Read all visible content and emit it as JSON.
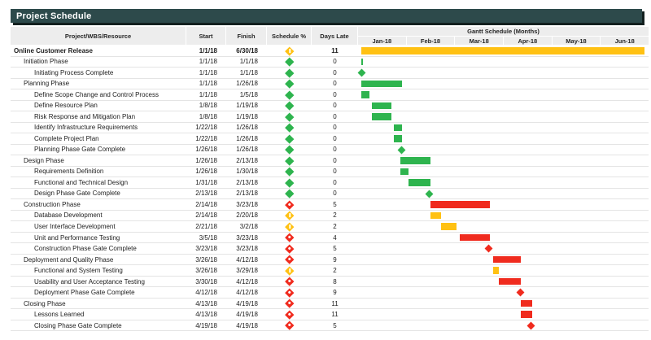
{
  "title": "Project Schedule",
  "chart_data": {
    "type": "table",
    "subtype": "gantt",
    "title": "Project Schedule",
    "columns": [
      "Project/WBS/Resource",
      "Start",
      "Finish",
      "Schedule %",
      "Days Late"
    ],
    "gantt_header": "Gantt Schedule (Months)",
    "months": [
      "Jan-18",
      "Feb-18",
      "Mar-18",
      "Apr-18",
      "May-18",
      "Jun-18"
    ],
    "timeline": {
      "start": "1/1/18",
      "end": "6/30/18"
    },
    "colors": {
      "green": "#2EB44E",
      "yellow": "#FFC113",
      "red": "#F02B1E",
      "title_bg": "#2D4A4B",
      "header_bg": "#EDEDED"
    },
    "rows": [
      {
        "name": "Online Customer Release",
        "level": 0,
        "bold": true,
        "start": "1/1/18",
        "finish": "6/30/18",
        "status": "yellow",
        "days_late": "11",
        "marker": "bar"
      },
      {
        "name": "Initiation Phase",
        "level": 1,
        "bold": false,
        "start": "1/1/18",
        "finish": "1/1/18",
        "status": "green",
        "days_late": "0",
        "marker": "bar"
      },
      {
        "name": "Initiating Process Complete",
        "level": 2,
        "bold": false,
        "start": "1/1/18",
        "finish": "1/1/18",
        "status": "green",
        "days_late": "0",
        "marker": "diamond"
      },
      {
        "name": "Planning Phase",
        "level": 1,
        "bold": false,
        "start": "1/1/18",
        "finish": "1/26/18",
        "status": "green",
        "days_late": "0",
        "marker": "bar"
      },
      {
        "name": "Define Scope Change and Control Process",
        "level": 2,
        "bold": false,
        "start": "1/1/18",
        "finish": "1/5/18",
        "status": "green",
        "days_late": "0",
        "marker": "bar"
      },
      {
        "name": "Define Resource Plan",
        "level": 2,
        "bold": false,
        "start": "1/8/18",
        "finish": "1/19/18",
        "status": "green",
        "days_late": "0",
        "marker": "bar"
      },
      {
        "name": "Risk Response and Mitigation Plan",
        "level": 2,
        "bold": false,
        "start": "1/8/18",
        "finish": "1/19/18",
        "status": "green",
        "days_late": "0",
        "marker": "bar"
      },
      {
        "name": "Identify Infrastructure Requirements",
        "level": 2,
        "bold": false,
        "start": "1/22/18",
        "finish": "1/26/18",
        "status": "green",
        "days_late": "0",
        "marker": "bar"
      },
      {
        "name": "Complete Project Plan",
        "level": 2,
        "bold": false,
        "start": "1/22/18",
        "finish": "1/26/18",
        "status": "green",
        "days_late": "0",
        "marker": "bar"
      },
      {
        "name": "Planning Phase Gate Complete",
        "level": 2,
        "bold": false,
        "start": "1/26/18",
        "finish": "1/26/18",
        "status": "green",
        "days_late": "0",
        "marker": "diamond"
      },
      {
        "name": "Design Phase",
        "level": 1,
        "bold": false,
        "start": "1/26/18",
        "finish": "2/13/18",
        "status": "green",
        "days_late": "0",
        "marker": "bar"
      },
      {
        "name": "Requirements Definition",
        "level": 2,
        "bold": false,
        "start": "1/26/18",
        "finish": "1/30/18",
        "status": "green",
        "days_late": "0",
        "marker": "bar"
      },
      {
        "name": "Functional and Technical Design",
        "level": 2,
        "bold": false,
        "start": "1/31/18",
        "finish": "2/13/18",
        "status": "green",
        "days_late": "0",
        "marker": "bar"
      },
      {
        "name": "Design Phase Gate Complete",
        "level": 2,
        "bold": false,
        "start": "2/13/18",
        "finish": "2/13/18",
        "status": "green",
        "days_late": "0",
        "marker": "diamond"
      },
      {
        "name": "Construction Phase",
        "level": 1,
        "bold": false,
        "start": "2/14/18",
        "finish": "3/23/18",
        "status": "red",
        "days_late": "5",
        "marker": "bar"
      },
      {
        "name": "Database Development",
        "level": 2,
        "bold": false,
        "start": "2/14/18",
        "finish": "2/20/18",
        "status": "yellow",
        "days_late": "2",
        "marker": "bar"
      },
      {
        "name": "User Interface Development",
        "level": 2,
        "bold": false,
        "start": "2/21/18",
        "finish": "3/2/18",
        "status": "yellow",
        "days_late": "2",
        "marker": "bar"
      },
      {
        "name": "Unit and Performance Testing",
        "level": 2,
        "bold": false,
        "start": "3/5/18",
        "finish": "3/23/18",
        "status": "red",
        "days_late": "4",
        "marker": "bar"
      },
      {
        "name": "Construction Phase Gate Complete",
        "level": 2,
        "bold": false,
        "start": "3/23/18",
        "finish": "3/23/18",
        "status": "red",
        "days_late": "5",
        "marker": "diamond"
      },
      {
        "name": "Deployment and Quality Phase",
        "level": 1,
        "bold": false,
        "start": "3/26/18",
        "finish": "4/12/18",
        "status": "red",
        "days_late": "9",
        "marker": "bar"
      },
      {
        "name": "Functional and System Testing",
        "level": 2,
        "bold": false,
        "start": "3/26/18",
        "finish": "3/29/18",
        "status": "yellow",
        "days_late": "2",
        "marker": "bar"
      },
      {
        "name": "Usability and User Acceptance Testing",
        "level": 2,
        "bold": false,
        "start": "3/30/18",
        "finish": "4/12/18",
        "status": "red",
        "days_late": "8",
        "marker": "bar"
      },
      {
        "name": "Deployment Phase Gate Complete",
        "level": 2,
        "bold": false,
        "start": "4/12/18",
        "finish": "4/12/18",
        "status": "red",
        "days_late": "9",
        "marker": "diamond"
      },
      {
        "name": "Closing Phase",
        "level": 1,
        "bold": false,
        "start": "4/13/18",
        "finish": "4/19/18",
        "status": "red",
        "days_late": "11",
        "marker": "bar"
      },
      {
        "name": "Lessons Learned",
        "level": 2,
        "bold": false,
        "start": "4/13/18",
        "finish": "4/19/18",
        "status": "red",
        "days_late": "11",
        "marker": "bar"
      },
      {
        "name": "Closing Phase Gate Complete",
        "level": 2,
        "bold": false,
        "start": "4/19/18",
        "finish": "4/19/18",
        "status": "red",
        "days_late": "5",
        "marker": "diamond"
      }
    ]
  }
}
